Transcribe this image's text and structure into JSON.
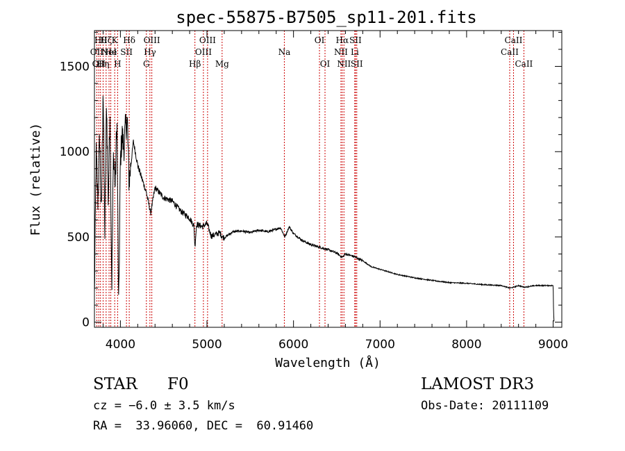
{
  "chart_data": {
    "type": "line",
    "title": "spec-55875-B7505_sp11-201.fits",
    "xlabel": "Wavelength (Å)",
    "ylabel": "Flux (relative)",
    "xlim": [
      3700,
      9100
    ],
    "ylim": [
      -30,
      1710
    ],
    "xticks": [
      4000,
      5000,
      6000,
      7000,
      8000,
      9000
    ],
    "yticks": [
      0,
      500,
      1000,
      1500
    ],
    "line_color": "#000000",
    "marker_color": "#cc0000",
    "series": [
      {
        "name": "flux",
        "x": [
          3700,
          3720,
          3740,
          3760,
          3780,
          3800,
          3820,
          3840,
          3860,
          3880,
          3900,
          3920,
          3940,
          3960,
          3980,
          4000,
          4020,
          4040,
          4060,
          4080,
          4100,
          4150,
          4200,
          4250,
          4300,
          4350,
          4400,
          4500,
          4600,
          4700,
          4800,
          4850,
          4861,
          4880,
          4950,
          5000,
          5050,
          5100,
          5150,
          5170,
          5200,
          5300,
          5400,
          5500,
          5600,
          5700,
          5800,
          5850,
          5900,
          5950,
          6000,
          6100,
          6200,
          6300,
          6400,
          6500,
          6563,
          6600,
          6700,
          6800,
          6900,
          7000,
          7200,
          7400,
          7600,
          7800,
          8000,
          8200,
          8400,
          8498,
          8542,
          8600,
          8662,
          8800,
          9000,
          9005,
          9010
        ],
        "y": [
          150,
          1000,
          700,
          1100,
          600,
          1400,
          500,
          1300,
          700,
          1250,
          200,
          1000,
          800,
          1200,
          50,
          950,
          1100,
          1020,
          1150,
          1180,
          820,
          1060,
          920,
          840,
          760,
          640,
          790,
          730,
          710,
          650,
          610,
          565,
          440,
          575,
          560,
          580,
          505,
          515,
          525,
          505,
          495,
          530,
          535,
          525,
          540,
          530,
          545,
          555,
          500,
          560,
          520,
          480,
          455,
          440,
          425,
          405,
          380,
          400,
          385,
          360,
          325,
          310,
          280,
          260,
          245,
          232,
          228,
          220,
          215,
          200,
          205,
          215,
          205,
          215,
          215,
          60,
          5
        ]
      }
    ],
    "line_markers": [
      {
        "x": 3727,
        "label": "OII",
        "row": 2
      },
      {
        "x": 3750,
        "label": "OII",
        "row": 3
      },
      {
        "x": 3770,
        "label": "Hθ",
        "row": 1
      },
      {
        "x": 3800,
        "label": "Hη",
        "row": 3
      },
      {
        "x": 3835,
        "label": "Hζ",
        "row": 1
      },
      {
        "x": 3869,
        "label": "NeI",
        "row": 2
      },
      {
        "x": 3889,
        "label": "He",
        "row": 2
      },
      {
        "x": 3934,
        "label": "K",
        "row": 1
      },
      {
        "x": 3968,
        "label": "H",
        "row": 3
      },
      {
        "x": 4070,
        "label": "SII",
        "row": 2
      },
      {
        "x": 4102,
        "label": "Hδ",
        "row": 1
      },
      {
        "x": 4300,
        "label": "G",
        "row": 3
      },
      {
        "x": 4341,
        "label": "Hγ",
        "row": 2
      },
      {
        "x": 4363,
        "label": "OIII",
        "row": 1
      },
      {
        "x": 4861,
        "label": "Hβ",
        "row": 3
      },
      {
        "x": 4959,
        "label": "OIII",
        "row": 2
      },
      {
        "x": 5007,
        "label": "OIII",
        "row": 1
      },
      {
        "x": 5175,
        "label": "Mg",
        "row": 3
      },
      {
        "x": 5894,
        "label": "Na",
        "row": 2
      },
      {
        "x": 6300,
        "label": "OI",
        "row": 1
      },
      {
        "x": 6364,
        "label": "OI",
        "row": 3
      },
      {
        "x": 6548,
        "label": "NII",
        "row": 2
      },
      {
        "x": 6563,
        "label": "Hα",
        "row": 1
      },
      {
        "x": 6583,
        "label": "NII",
        "row": 3
      },
      {
        "x": 6708,
        "label": "Li",
        "row": 2
      },
      {
        "x": 6716,
        "label": "SII",
        "row": 1
      },
      {
        "x": 6731,
        "label": "SII",
        "row": 3
      },
      {
        "x": 8498,
        "label": "CaII",
        "row": 2
      },
      {
        "x": 8542,
        "label": "CaII",
        "row": 1
      },
      {
        "x": 8662,
        "label": "CaII",
        "row": 3
      }
    ]
  },
  "info": {
    "class": "STAR",
    "subclass": "F0",
    "survey": "LAMOST DR3",
    "cz": "cz = −6.0 ± 3.5 km/s",
    "obs_date": "Obs-Date: 20111109",
    "coords": "RA =  33.96060, DEC =  60.91460"
  }
}
